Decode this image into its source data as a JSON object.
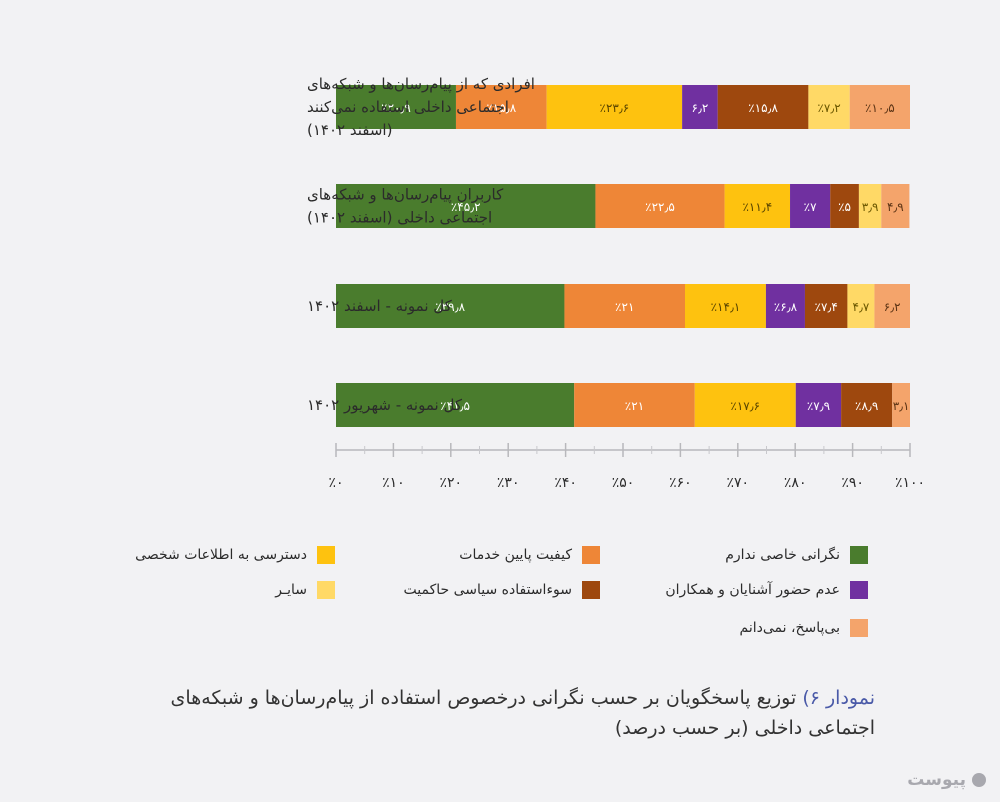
{
  "chart_data": {
    "type": "bar",
    "orientation": "horizontal",
    "stacked": true,
    "categories": [
      "افرادی که از پیام‌رسان‌ها و شبکه‌های اجتماعی داخلی استفاده نمی‌کنند (اسفند ۱۴۰۲)",
      "کاربران پیام‌رسان‌ها و شبکه‌های اجتماعی داخلی (اسفند ۱۴۰۲)",
      "کل نمونه - اسفند ۱۴۰۲",
      "کل نمونه - شهریور ۱۴۰۲"
    ],
    "category_lines": [
      [
        "افرادی که از پیام‌رسان‌ها و شبکه‌های",
        "اجتماعی داخلی استفاده نمی‌کنند",
        "(اسفند ۱۴۰۲)"
      ],
      [
        "کاربران پیام‌رسان‌ها و شبکه‌های",
        "اجتماعی داخلی (اسفند ۱۴۰۲)"
      ],
      [
        "کل نمونه - اسفند ۱۴۰۲"
      ],
      [
        "کل نمونه - شهریور ۱۴۰۲"
      ]
    ],
    "series": [
      {
        "name": "نگرانی خاصی ندارم",
        "color": "#4a7c2d",
        "values": [
          20.9,
          45.2,
          39.8,
          41.5
        ],
        "labels": [
          "٪۲۰٫۹",
          "٪۴۵٫۲",
          "٪۳۹٫۸",
          "٪۴۱٫۵"
        ]
      },
      {
        "name": "کیفیت پایین خدمات",
        "color": "#ee8637",
        "values": [
          15.8,
          22.5,
          21,
          21
        ],
        "labels": [
          "٪۱۵٫۸",
          "٪۲۲٫۵",
          "٪۲۱",
          "٪۲۱"
        ]
      },
      {
        "name": "دسترسی به اطلاعات شخصی",
        "color": "#fec20f",
        "values": [
          23.6,
          11.4,
          14.1,
          17.6
        ],
        "labels": [
          "٪۲۳٫۶",
          "٪۱۱٫۴",
          "٪۱۴٫۱",
          "٪۱۷٫۶"
        ]
      },
      {
        "name": "عدم حضور آشنایان و همکاران",
        "color": "#7030a0",
        "values": [
          6.2,
          7,
          6.8,
          7.9
        ],
        "labels": [
          "۶٫۲",
          "٪۷",
          "٪۶٫۸",
          "٪۷٫۹"
        ]
      },
      {
        "name": "سوءاستفاده سیاسی حاکمیت",
        "color": "#9e480e",
        "values": [
          15.8,
          5,
          7.4,
          8.9
        ],
        "labels": [
          "٪۱۵٫۸",
          "٪۵",
          "٪۷٫۴",
          "٪۸٫۹"
        ]
      },
      {
        "name": "سایـر",
        "color": "#ffd966",
        "values": [
          7.2,
          3.9,
          4.7,
          0
        ],
        "labels": [
          "٪۷٫۲",
          "۳٫۹",
          "۴٫۷",
          ""
        ]
      },
      {
        "name": "بی‌پاسخ، نمی‌دانم",
        "color": "#f4a46b",
        "values": [
          10.5,
          4.9,
          6.2,
          3.1
        ],
        "labels": [
          "٪۱۰٫۵",
          "۴٫۹",
          "۶٫۲",
          "۳٫۱"
        ]
      }
    ],
    "xlim": [
      0,
      100
    ],
    "xticks": [
      0,
      10,
      20,
      30,
      40,
      50,
      60,
      70,
      80,
      90,
      100
    ],
    "xtick_labels": [
      "٪۰",
      "٪۱۰",
      "٪۲۰",
      "٪۳۰",
      "٪۴۰",
      "٪۵۰",
      "٪۶۰",
      "٪۷۰",
      "٪۸۰",
      "٪۹۰",
      "٪۱۰۰"
    ],
    "grid": false,
    "legend_position": "bottom"
  },
  "legend": [
    {
      "label": "دسترسی به اطلاعات شخصی",
      "color": "#fec20f"
    },
    {
      "label": "کیفیت پایین خدمات",
      "color": "#ee8637"
    },
    {
      "label": "نگرانی خاصی ندارم",
      "color": "#4a7c2d"
    },
    {
      "label": "سایـر",
      "color": "#ffd966"
    },
    {
      "label": "سوءاستفاده سیاسی حاکمیت",
      "color": "#9e480e"
    },
    {
      "label": "عدم حضور آشنایان و همکاران",
      "color": "#7030a0"
    },
    {
      "label": "بی‌پاسخ، نمی‌دانم",
      "color": "#f4a46b"
    }
  ],
  "caption": {
    "number": "نمودار ۶)",
    "text": "توزیع پاسخگویان بر حسب نگرانی درخصوص استفاده از پیام‌رسان‌ها و شبکه‌های اجتماعی داخلی (بر حسب درصد)"
  },
  "logo": {
    "text": "پیوست",
    "icon": "circle-logo-icon"
  }
}
